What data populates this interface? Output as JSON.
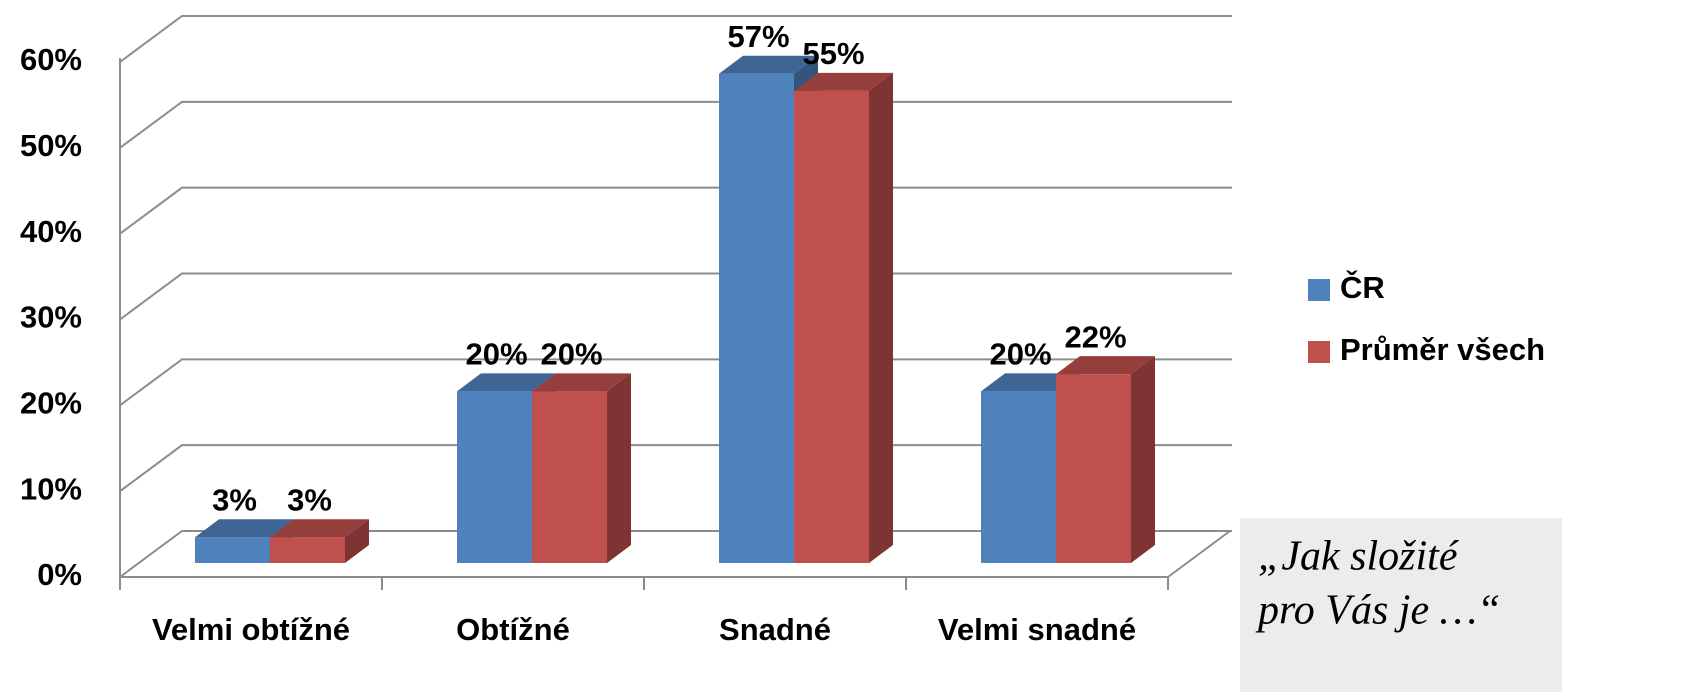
{
  "chart_data": {
    "type": "bar3d",
    "categories": [
      "Velmi obtížné",
      "Obtížné",
      "Snadné",
      "Velmi snadné"
    ],
    "series": [
      {
        "name": "ČR",
        "color": "#4f81bd",
        "values": [
          3,
          20,
          57,
          20
        ],
        "value_labels": [
          "3%",
          "20%",
          "57%",
          "20%"
        ]
      },
      {
        "name": "Průměr všech",
        "color": "#c0504d",
        "values": [
          3,
          20,
          55,
          22
        ],
        "value_labels": [
          "3%",
          "20%",
          "55%",
          "22%"
        ]
      }
    ],
    "ylim": [
      0,
      60
    ],
    "yticks": [
      {
        "value": 0,
        "label": "0%"
      },
      {
        "value": 10,
        "label": "10%"
      },
      {
        "value": 20,
        "label": "20%"
      },
      {
        "value": 30,
        "label": "30%"
      },
      {
        "value": 40,
        "label": "40%"
      },
      {
        "value": 50,
        "label": "50%"
      },
      {
        "value": 60,
        "label": "60%"
      }
    ],
    "grid": true,
    "legend": "right",
    "annotation": [
      "„Jak složité",
      "pro Vás je …“"
    ]
  }
}
